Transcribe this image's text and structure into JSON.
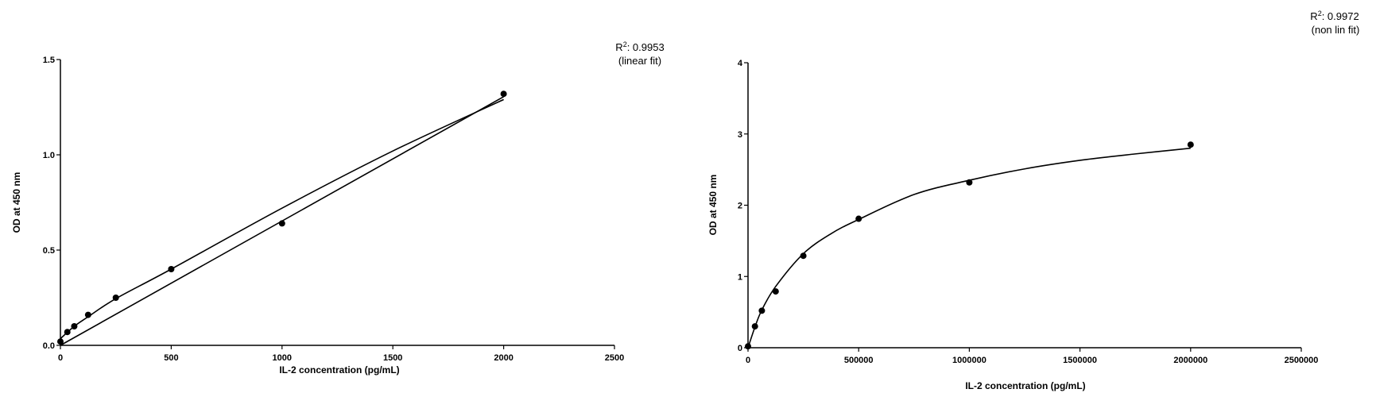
{
  "chart_data": [
    {
      "type": "scatter",
      "title": "",
      "xlabel": "IL-2 concentration (pg/mL)",
      "ylabel": "OD at 450 nm",
      "xlim": [
        0,
        2500
      ],
      "ylim": [
        0,
        1.5
      ],
      "xticks": [
        "0",
        "500",
        "1000",
        "1500",
        "2000",
        "2500"
      ],
      "yticks": [
        "0.0",
        "0.5",
        "1.0",
        "1.5"
      ],
      "points": [
        {
          "x": 0,
          "y": 0.02
        },
        {
          "x": 31.25,
          "y": 0.07
        },
        {
          "x": 62.5,
          "y": 0.1
        },
        {
          "x": 125,
          "y": 0.16
        },
        {
          "x": 250,
          "y": 0.25
        },
        {
          "x": 500,
          "y": 0.4
        },
        {
          "x": 1000,
          "y": 0.64
        },
        {
          "x": 2000,
          "y": 1.32
        }
      ],
      "fit_lines": [
        {
          "kind": "linear",
          "x": [
            0,
            2000
          ],
          "y": [
            0.0,
            1.305
          ]
        },
        {
          "kind": "curve",
          "x": [
            0,
            62.5,
            125,
            250,
            500,
            1000,
            1500,
            2000
          ],
          "y": [
            0.035,
            0.1,
            0.15,
            0.245,
            0.4,
            0.72,
            1.02,
            1.29
          ]
        }
      ],
      "annotation": {
        "r_prefix": "R",
        "r_sup": "2",
        "r_value": ": 0.9953",
        "fit": "(linear fit)"
      },
      "grid": false
    },
    {
      "type": "scatter",
      "title": "",
      "xlabel": "IL-2 concentration (pg/mL)",
      "ylabel": "OD at 450 nm",
      "xlim": [
        0,
        2500000
      ],
      "ylim": [
        0,
        4
      ],
      "xticks": [
        "0",
        "500000",
        "1000000",
        "1500000",
        "2000000",
        "2500000"
      ],
      "yticks": [
        "0",
        "1",
        "2",
        "3",
        "4"
      ],
      "points": [
        {
          "x": 0,
          "y": 0.02
        },
        {
          "x": 31250,
          "y": 0.3
        },
        {
          "x": 62500,
          "y": 0.52
        },
        {
          "x": 125000,
          "y": 0.79
        },
        {
          "x": 250000,
          "y": 1.29
        },
        {
          "x": 500000,
          "y": 1.81
        },
        {
          "x": 1000000,
          "y": 2.32
        },
        {
          "x": 2000000,
          "y": 2.85
        }
      ],
      "fit_lines": [
        {
          "kind": "curve",
          "x": [
            0,
            31250,
            62500,
            125000,
            250000,
            375000,
            500000,
            750000,
            1000000,
            1250000,
            1500000,
            1750000,
            2000000
          ],
          "y": [
            0.0,
            0.29,
            0.53,
            0.86,
            1.32,
            1.6,
            1.8,
            2.15,
            2.35,
            2.51,
            2.63,
            2.72,
            2.8
          ]
        }
      ],
      "annotation": {
        "r_prefix": "R",
        "r_sup": "2",
        "r_value": ": 0.9972",
        "fit": "(non lin fit)"
      },
      "grid": false
    }
  ]
}
